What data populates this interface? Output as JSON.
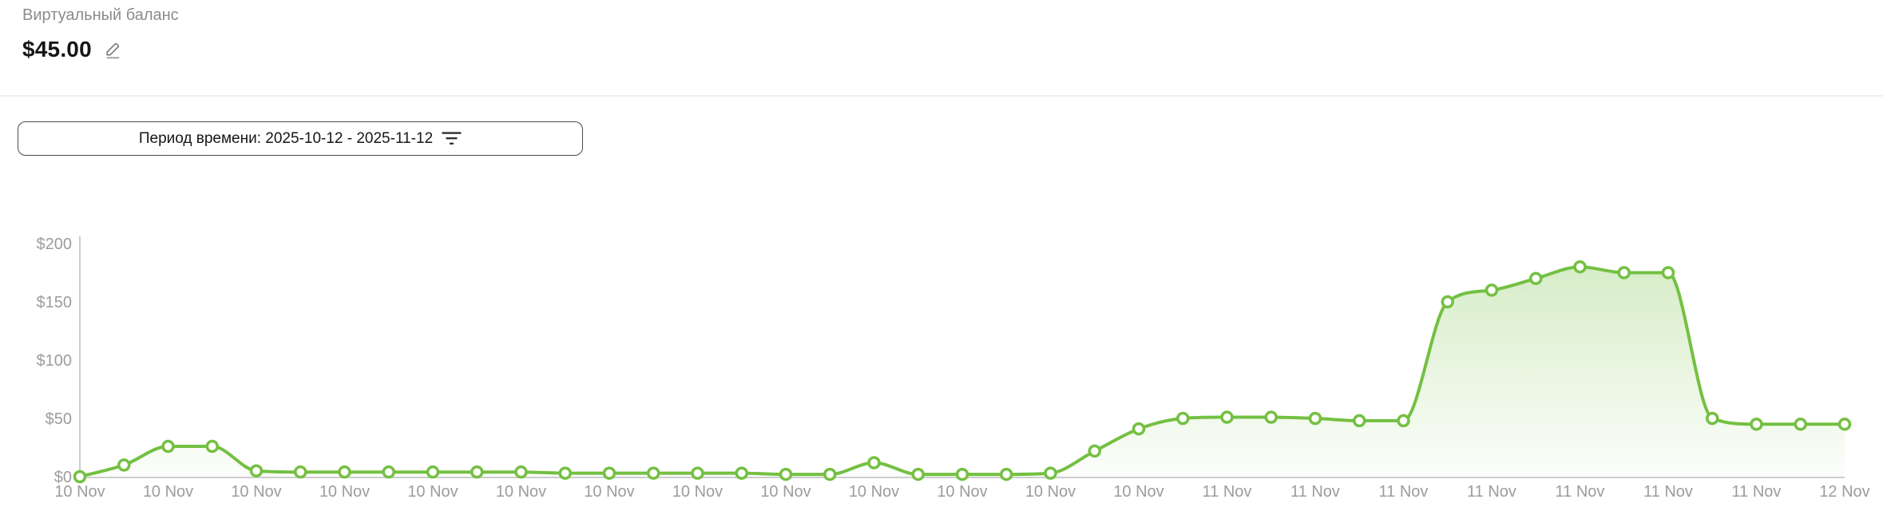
{
  "header": {
    "title": "Виртуальный баланс",
    "balance": "$45.00"
  },
  "filter": {
    "label": "Период времени: 2025-10-12 - 2025-11-12",
    "period_start": "2025-10-12",
    "period_end": "2025-11-12",
    "icon": "filter-list-icon"
  },
  "colors": {
    "accent_green": "#74c042",
    "axis_gray": "#cdcdcd",
    "tick_label_gray": "#9c9c9c",
    "title_gray": "#8b8b8b",
    "text_dark": "#161616",
    "divider_gray": "#eeeeee"
  },
  "chart_data": {
    "type": "area",
    "title": "",
    "xlabel": "",
    "ylabel": "",
    "ylim": [
      0,
      200
    ],
    "grid": false,
    "legend": "none",
    "currency": "$",
    "y_tick_labels": [
      "$0",
      "$50",
      "$100",
      "$150",
      "$200"
    ],
    "y_tick_values": [
      0,
      50,
      100,
      150,
      200
    ],
    "x_tick_every_n_points": 2,
    "x_tick_labels": [
      "10 Nov",
      "10 Nov",
      "10 Nov",
      "10 Nov",
      "10 Nov",
      "10 Nov",
      "10 Nov",
      "10 Nov",
      "10 Nov",
      "10 Nov",
      "10 Nov",
      "10 Nov",
      "10 Nov",
      "11 Nov",
      "11 Nov",
      "11 Nov",
      "11 Nov",
      "11 Nov",
      "11 Nov",
      "11 Nov",
      "12 Nov"
    ],
    "series": [
      {
        "name": "Виртуальный баланс",
        "values": [
          0,
          10,
          26,
          26,
          5,
          4,
          4,
          4,
          4,
          4,
          4,
          3,
          3,
          3,
          3,
          3,
          2,
          2,
          12,
          2,
          2,
          2,
          3,
          22,
          41,
          50,
          51,
          51,
          50,
          48,
          48,
          150,
          160,
          170,
          180,
          175,
          175,
          50,
          45,
          45,
          45
        ]
      }
    ],
    "line_color": "#74c042",
    "marker": "white circle with green stroke",
    "fill": "vertical green fade"
  }
}
